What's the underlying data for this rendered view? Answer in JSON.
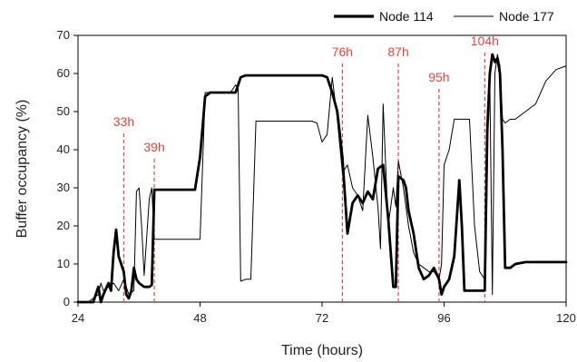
{
  "chart_data": {
    "type": "line",
    "title": "",
    "xlabel": "Time (hours)",
    "ylabel": "Buffer occupancy (%)",
    "xlim": [
      24,
      120
    ],
    "ylim": [
      0,
      70
    ],
    "xticks": [
      24,
      48,
      72,
      96,
      120
    ],
    "yticks": [
      0,
      10,
      20,
      30,
      40,
      50,
      60,
      70
    ],
    "grid": false,
    "legend_position": "top-right",
    "annotations": [
      {
        "x": 33,
        "label": "33h"
      },
      {
        "x": 39,
        "label": "39h"
      },
      {
        "x": 76,
        "label": "76h"
      },
      {
        "x": 87,
        "label": "87h"
      },
      {
        "x": 95,
        "label": "95h"
      },
      {
        "x": 104,
        "label": "104h"
      }
    ],
    "annotation_color": "#e8413a",
    "series": [
      {
        "name": "Node 114",
        "style": "thick",
        "color": "#000000",
        "x": [
          24,
          27,
          28,
          28.5,
          29,
          30,
          30.5,
          31,
          31.5,
          32,
          32.5,
          33,
          33.5,
          34,
          34.5,
          35,
          35.5,
          36,
          37,
          38,
          38.5,
          39,
          40,
          44,
          47,
          48,
          49,
          50,
          52,
          54,
          55,
          56,
          57,
          58,
          64,
          70,
          72,
          73,
          74,
          75,
          76,
          77,
          78,
          79,
          80,
          81,
          82,
          83,
          84,
          85,
          86,
          86.5,
          87,
          88,
          88.5,
          89,
          90,
          91,
          92,
          93,
          94,
          95,
          95.5,
          96,
          97,
          98,
          99,
          99.5,
          100,
          100.5,
          101,
          103,
          104,
          104.5,
          105,
          105.5,
          106,
          106.5,
          107,
          107.5,
          108,
          109,
          110,
          112,
          114,
          120
        ],
        "y": [
          0,
          0,
          4,
          0,
          2,
          5,
          3,
          13,
          19,
          12,
          10,
          8,
          2,
          1,
          3,
          9,
          6,
          5,
          4,
          4,
          4.5,
          29.5,
          29.5,
          29.5,
          29.5,
          38,
          54,
          55,
          55,
          55,
          55,
          59,
          59.5,
          59.5,
          59.5,
          59.5,
          59.5,
          59,
          55,
          50,
          38,
          18,
          26,
          28,
          26,
          29,
          27,
          35,
          36,
          22,
          4,
          4,
          33,
          32,
          30,
          24,
          18,
          9,
          6,
          7,
          9,
          6,
          2,
          4,
          6,
          12,
          32,
          20,
          3,
          3,
          3,
          3,
          3,
          45,
          60,
          65,
          63,
          64,
          60,
          40,
          9,
          9,
          10,
          10.5,
          10.5,
          10.5
        ]
      },
      {
        "name": "Node 177",
        "style": "thin",
        "color": "#000000",
        "x": [
          24,
          26,
          27,
          28,
          28.5,
          29,
          30,
          31,
          32,
          33,
          34,
          35,
          35.5,
          36,
          36.5,
          37,
          38,
          38.5,
          39,
          40,
          44,
          48,
          49,
          50,
          52,
          54,
          55,
          55.5,
          56,
          57,
          58,
          59,
          60,
          70,
          71,
          72,
          73,
          74,
          75,
          76,
          77,
          78,
          79,
          80,
          81,
          82,
          83,
          83.5,
          84,
          85,
          86,
          86.5,
          87,
          88,
          89,
          90,
          91,
          92,
          93,
          94,
          95,
          95.5,
          96,
          97,
          98,
          99,
          100,
          101,
          102,
          103,
          104,
          104.5,
          105,
          105.5,
          106,
          106.5,
          107,
          107.5,
          108,
          109,
          110,
          112,
          114,
          116,
          118,
          120
        ],
        "y": [
          0,
          0,
          1,
          2,
          5,
          3,
          4,
          5,
          3,
          6,
          2,
          3,
          29,
          30,
          20,
          7,
          27,
          30,
          16.5,
          16.5,
          16.5,
          16.5,
          55,
          55,
          55,
          55,
          57,
          56,
          5.5,
          6,
          6,
          47.5,
          47.5,
          47.5,
          47,
          42,
          44,
          59,
          48,
          34,
          36,
          30,
          28,
          24,
          49,
          38,
          25,
          14,
          52,
          20,
          30,
          25,
          37,
          30,
          20,
          13,
          10,
          9,
          8,
          8,
          6,
          10,
          36,
          40,
          48,
          48,
          48,
          48,
          20,
          8,
          6,
          50,
          58,
          2,
          60,
          65,
          62,
          48,
          47,
          48,
          48,
          50,
          52,
          58,
          61,
          62
        ]
      }
    ]
  }
}
